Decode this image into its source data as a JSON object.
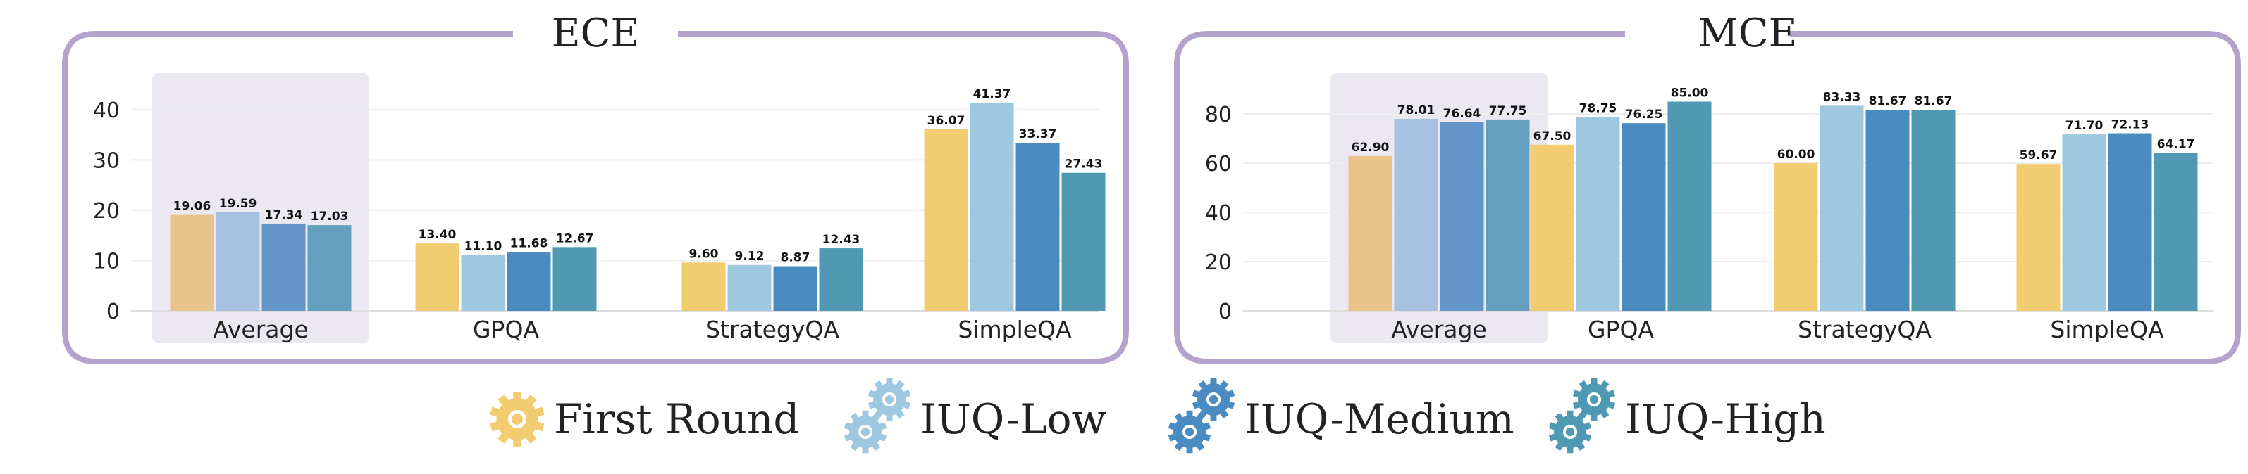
{
  "chart_data": [
    {
      "type": "bar",
      "title": "ECE",
      "categories": [
        "Average",
        "GPQA",
        "StrategyQA",
        "SimpleQA"
      ],
      "highlighted_category": "Average",
      "ylim": [
        0,
        45
      ],
      "yticks": [
        0,
        10,
        20,
        30,
        40
      ],
      "grid": true,
      "series": [
        {
          "name": "First Round",
          "values": [
            19.06,
            13.4,
            9.6,
            36.07
          ]
        },
        {
          "name": "IUQ-Low",
          "values": [
            19.59,
            11.1,
            9.12,
            41.37
          ]
        },
        {
          "name": "IUQ-Medium",
          "values": [
            17.34,
            11.68,
            8.87,
            33.37
          ]
        },
        {
          "name": "IUQ-High",
          "values": [
            17.03,
            12.67,
            12.43,
            27.43
          ]
        }
      ]
    },
    {
      "type": "bar",
      "title": "MCE",
      "categories": [
        "Average",
        "GPQA",
        "StrategyQA",
        "SimpleQA"
      ],
      "highlighted_category": "Average",
      "ylim": [
        0,
        92
      ],
      "yticks": [
        0,
        20,
        40,
        60,
        80
      ],
      "grid": true,
      "series": [
        {
          "name": "First Round",
          "values": [
            62.9,
            67.5,
            60.0,
            59.67
          ]
        },
        {
          "name": "IUQ-Low",
          "values": [
            78.01,
            78.75,
            83.33,
            71.7
          ]
        },
        {
          "name": "IUQ-Medium",
          "values": [
            76.64,
            76.25,
            81.67,
            72.13
          ]
        },
        {
          "name": "IUQ-High",
          "values": [
            77.75,
            85.0,
            81.67,
            64.17
          ]
        }
      ]
    }
  ],
  "legend": {
    "placement": "bottom-center",
    "icon": "gear-icon",
    "items": [
      {
        "name": "First Round",
        "color": "#f2cc70",
        "gears": 1
      },
      {
        "name": "IUQ-Low",
        "color": "#9ec8df",
        "gears": 2
      },
      {
        "name": "IUQ-Medium",
        "color": "#4a8cc2",
        "gears": 2
      },
      {
        "name": "IUQ-High",
        "color": "#4f9ab2",
        "gears": 2
      }
    ]
  },
  "colors": {
    "series": [
      "#f2cc70",
      "#9ec8df",
      "#4a8cc2",
      "#4f9ab2"
    ],
    "average_series": [
      "#e8c48a",
      "#a6c2e0",
      "#6395c8",
      "#659fbe"
    ],
    "highlight_background": "#ece8f1",
    "frame": "#b3a2cb"
  }
}
